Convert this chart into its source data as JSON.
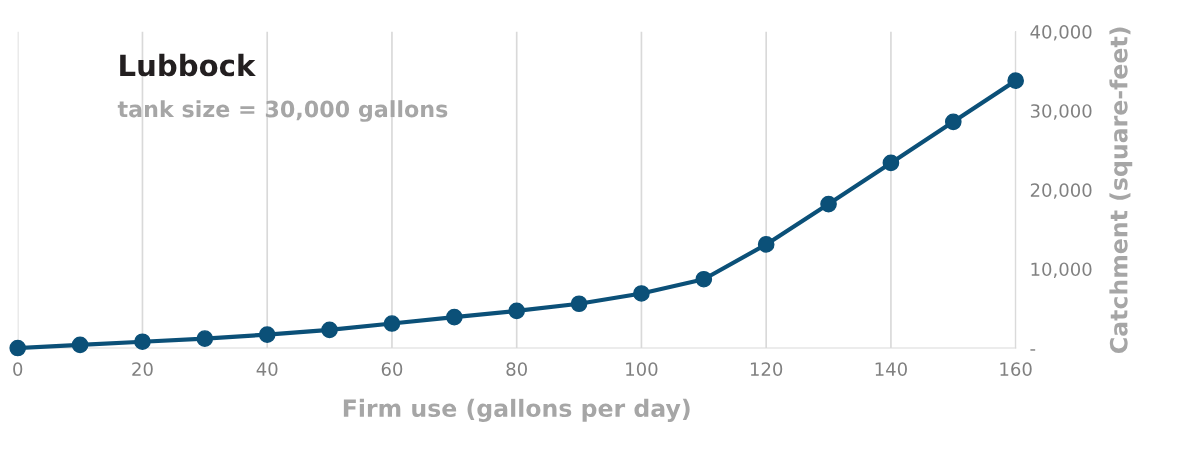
{
  "chart_data": {
    "type": "line",
    "title": "Lubbock",
    "subtitle": "tank size = 30,000 gallons",
    "xlabel": "Firm use (gallons per day)",
    "ylabel": "Catchment (square-feet)",
    "x": [
      0,
      10,
      20,
      30,
      40,
      50,
      60,
      70,
      80,
      90,
      100,
      110,
      120,
      130,
      140,
      150,
      160
    ],
    "series": [
      {
        "color": "#0b5078",
        "values": [
          0,
          400,
          800,
          1200,
          1700,
          2300,
          3100,
          3900,
          4700,
          5600,
          6900,
          8700,
          13100,
          18200,
          23400,
          28600,
          33800
        ]
      }
    ],
    "xlim": [
      0,
      160
    ],
    "xticks": [
      0,
      20,
      40,
      60,
      80,
      100,
      120,
      140,
      160
    ],
    "ylim": [
      0,
      40000
    ],
    "yticks": [
      {
        "value": 0,
        "label": "-"
      },
      {
        "value": 10000,
        "label": "10,000"
      },
      {
        "value": 20000,
        "label": "20,000"
      },
      {
        "value": 30000,
        "label": "30,000"
      },
      {
        "value": 40000,
        "label": "40,000"
      }
    ],
    "grid": "x",
    "marker": "circle",
    "line_style": "solid"
  }
}
